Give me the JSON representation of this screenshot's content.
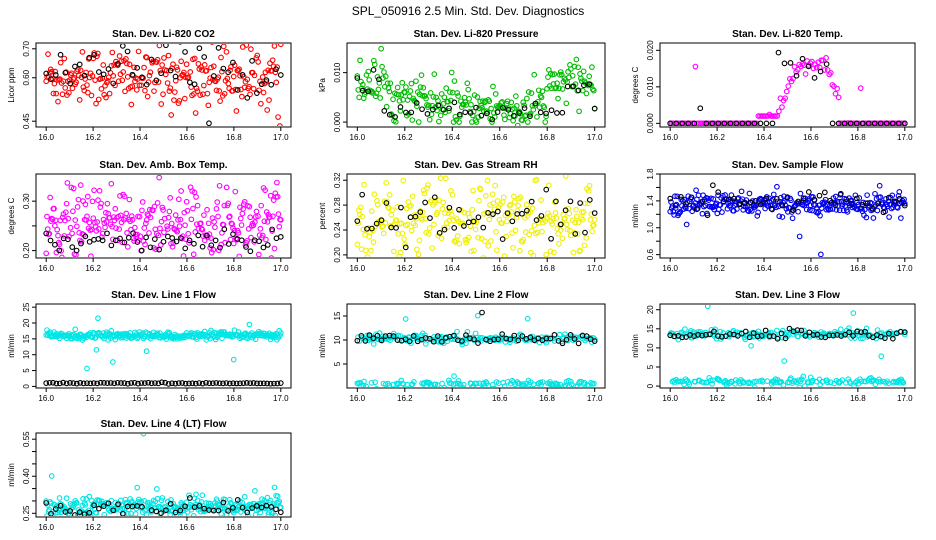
{
  "page_title": "SPL_050916  2.5 Min. Std. Dev. Diagnostics",
  "chart_data": [
    {
      "type": "scatter",
      "title": "Stan. Dev. Li-820 CO2",
      "xlabel": "",
      "ylabel": "Licor ppm",
      "xlim": [
        16.0,
        17.0
      ],
      "ylim": [
        0.43,
        0.72
      ],
      "xticks": [
        "16.0",
        "16.2",
        "16.4",
        "16.6",
        "16.8",
        "17.0"
      ],
      "yticks": [
        0.45,
        0.6,
        0.7
      ],
      "ytick_labels": [
        "0.45",
        "0.60",
        "0.70"
      ],
      "series": [
        {
          "name": "red",
          "color": "#ff0000",
          "pattern": "band",
          "center": 0.605,
          "spread": 0.055,
          "count": 260
        },
        {
          "name": "black",
          "color": "#000000",
          "pattern": "band",
          "center": 0.62,
          "spread": 0.05,
          "count": 50
        }
      ]
    },
    {
      "type": "scatter",
      "title": "Stan. Dev. Li-820 Pressure",
      "xlabel": "",
      "ylabel": "kPa",
      "xlim": [
        16.0,
        17.0
      ],
      "ylim": [
        -0.001,
        0.016
      ],
      "xticks": [
        "16.0",
        "16.2",
        "16.4",
        "16.6",
        "16.8",
        "17.0"
      ],
      "yticks": [
        0.0,
        0.01
      ],
      "ytick_labels": [
        "0.000",
        "0.010"
      ],
      "series": [
        {
          "name": "green",
          "color": "#00bb00",
          "pattern": "pressure",
          "count": 260
        },
        {
          "name": "black",
          "color": "#000000",
          "pattern": "pressure_low",
          "count": 45
        }
      ]
    },
    {
      "type": "scatter",
      "title": "Stan. Dev. Li-820 Temp.",
      "xlabel": "",
      "ylabel": "degrees C",
      "xlim": [
        16.0,
        17.0
      ],
      "ylim": [
        -0.001,
        0.022
      ],
      "xticks": [
        "16.0",
        "16.2",
        "16.4",
        "16.6",
        "16.8",
        "17.0"
      ],
      "yticks": [
        0.0,
        0.01,
        0.02
      ],
      "ytick_labels": [
        "0.000",
        "0.010",
        "0.020"
      ],
      "series": [
        {
          "name": "magenta",
          "color": "#ff00ff",
          "pattern": "hump",
          "count": 150
        },
        {
          "name": "black",
          "color": "#000000",
          "pattern": "hump_black",
          "count": 40
        }
      ]
    },
    {
      "type": "scatter",
      "title": "Stan. Dev. Amb. Box Temp.",
      "xlabel": "",
      "ylabel": "degrees C",
      "xlim": [
        16.0,
        17.0
      ],
      "ylim": [
        0.185,
        0.355
      ],
      "xticks": [
        "16.0",
        "16.2",
        "16.4",
        "16.6",
        "16.8",
        "17.0"
      ],
      "yticks": [
        0.2,
        0.25,
        0.3
      ],
      "ytick_labels": [
        "0.20",
        "",
        "0.30"
      ],
      "series": [
        {
          "name": "magenta",
          "color": "#ff00ff",
          "pattern": "band",
          "center": 0.255,
          "spread": 0.035,
          "count": 300
        },
        {
          "name": "black",
          "color": "#000000",
          "pattern": "band",
          "center": 0.222,
          "spread": 0.012,
          "count": 55
        }
      ]
    },
    {
      "type": "scatter",
      "title": "Stan. Dev. Gas Stream RH",
      "xlabel": "",
      "ylabel": "percent",
      "xlim": [
        16.0,
        17.0
      ],
      "ylim": [
        0.195,
        0.33
      ],
      "xticks": [
        "16.0",
        "16.2",
        "16.4",
        "16.6",
        "16.8",
        "17.0"
      ],
      "yticks": [
        0.2,
        0.24,
        0.28,
        0.32
      ],
      "ytick_labels": [
        "0.20",
        "0.24",
        "0.28",
        "0.32"
      ],
      "series": [
        {
          "name": "yellow",
          "color": "#f0f000",
          "pattern": "band",
          "center": 0.255,
          "spread": 0.03,
          "count": 280
        },
        {
          "name": "black",
          "color": "#000000",
          "pattern": "band",
          "center": 0.255,
          "spread": 0.025,
          "count": 50
        }
      ]
    },
    {
      "type": "scatter",
      "title": "Stan. Dev. Sample Flow",
      "xlabel": "",
      "ylabel": "ml/min",
      "xlim": [
        16.0,
        17.0
      ],
      "ylim": [
        0.55,
        1.8
      ],
      "xticks": [
        "16.0",
        "16.2",
        "16.4",
        "16.6",
        "16.8",
        "17.0"
      ],
      "yticks": [
        0.6,
        0.8,
        1.0,
        1.2,
        1.4,
        1.6,
        1.8
      ],
      "ytick_labels": [
        "0.6",
        "",
        "1.0",
        "",
        "1.4",
        "",
        "1.8"
      ],
      "series": [
        {
          "name": "blue",
          "color": "#0000ee",
          "pattern": "band",
          "center": 1.35,
          "spread": 0.08,
          "count": 300
        },
        {
          "name": "black",
          "color": "#000000",
          "pattern": "band",
          "center": 1.4,
          "spread": 0.08,
          "count": 45
        }
      ]
    },
    {
      "type": "scatter",
      "title": "Stan. Dev. Line 1 Flow",
      "xlabel": "",
      "ylabel": "ml/min",
      "xlim": [
        16.0,
        17.0
      ],
      "ylim": [
        -0.5,
        26
      ],
      "xticks": [
        "16.0",
        "16.2",
        "16.4",
        "16.6",
        "16.8",
        "17.0"
      ],
      "yticks": [
        0,
        5,
        10,
        15,
        20,
        25
      ],
      "ytick_labels": [
        "0",
        "5",
        "10",
        "15",
        "20",
        "25"
      ],
      "series": [
        {
          "name": "cyan",
          "color": "#00e5e5",
          "pattern": "band",
          "center": 16,
          "spread": 0.6,
          "count": 300
        },
        {
          "name": "black",
          "color": "#000000",
          "pattern": "band",
          "center": 1.0,
          "spread": 0.1,
          "count": 70
        }
      ]
    },
    {
      "type": "scatter",
      "title": "Stan. Dev. Line 2 Flow",
      "xlabel": "",
      "ylabel": "ml/min",
      "xlim": [
        16.0,
        17.0
      ],
      "ylim": [
        0,
        17.5
      ],
      "xticks": [
        "16.0",
        "16.2",
        "16.4",
        "16.6",
        "16.8",
        "17.0"
      ],
      "yticks": [
        5,
        10,
        15
      ],
      "ytick_labels": [
        "5",
        "10",
        "15"
      ],
      "series": [
        {
          "name": "cyan",
          "color": "#00e5e5",
          "pattern": "twoband",
          "center": 10.3,
          "center2": 0.9,
          "spread": 0.6,
          "count": 320
        },
        {
          "name": "black",
          "color": "#000000",
          "pattern": "band",
          "center": 10.3,
          "spread": 0.5,
          "count": 60
        }
      ]
    },
    {
      "type": "scatter",
      "title": "Stan. Dev. Line 3 Flow",
      "xlabel": "",
      "ylabel": "ml/min",
      "xlim": [
        16.0,
        17.0
      ],
      "ylim": [
        -0.5,
        21.5
      ],
      "xticks": [
        "16.0",
        "16.2",
        "16.4",
        "16.6",
        "16.8",
        "17.0"
      ],
      "yticks": [
        0,
        5,
        10,
        15,
        20
      ],
      "ytick_labels": [
        "0",
        "5",
        "10",
        "15",
        "20"
      ],
      "series": [
        {
          "name": "cyan",
          "color": "#00e5e5",
          "pattern": "twoband",
          "center": 13.5,
          "center2": 1.2,
          "spread": 0.7,
          "count": 320
        },
        {
          "name": "black",
          "color": "#000000",
          "pattern": "band",
          "center": 13.5,
          "spread": 0.6,
          "count": 60
        }
      ]
    },
    {
      "type": "scatter",
      "title": "Stan. Dev. Line 4 (LT) Flow",
      "xlabel": "",
      "ylabel": "ml/min",
      "xlim": [
        16.0,
        17.0
      ],
      "ylim": [
        0.235,
        0.575
      ],
      "xticks": [
        "16.0",
        "16.2",
        "16.4",
        "16.6",
        "16.8",
        "17.0"
      ],
      "yticks": [
        0.25,
        0.3,
        0.35,
        0.4,
        0.45,
        0.5,
        0.55
      ],
      "ytick_labels": [
        "0.25",
        "",
        "",
        "0.40",
        "",
        "",
        "0.55"
      ],
      "series": [
        {
          "name": "cyan",
          "color": "#00e5e5",
          "pattern": "band",
          "center": 0.275,
          "spread": 0.02,
          "count": 300
        },
        {
          "name": "black",
          "color": "#000000",
          "pattern": "band",
          "center": 0.27,
          "spread": 0.015,
          "count": 50
        }
      ]
    }
  ]
}
